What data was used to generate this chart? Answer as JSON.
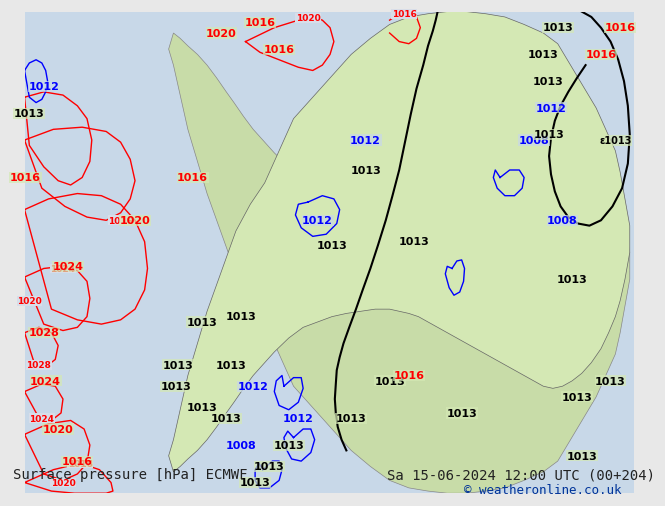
{
  "title_left": "Surface pressure [hPa] ECMWF",
  "title_right": "Sa 15-06-2024 12:00 UTC (00+204)",
  "copyright": "© weatheronline.co.uk",
  "bg_color": "#e8e8e8",
  "map_bg": "#f0f0f0",
  "land_color": "#b8d4a0",
  "font_size_title": 10,
  "font_size_copy": 9,
  "text_color": "#222222",
  "copy_color": "#003399"
}
